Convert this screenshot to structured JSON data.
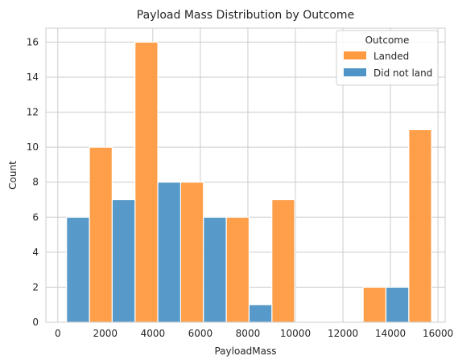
{
  "chart_data": {
    "type": "bar",
    "title": "Payload Mass Distribution by Outcome",
    "xlabel": "PayloadMass",
    "ylabel": "Count",
    "xlim": [
      -500,
      16300
    ],
    "ylim": [
      0,
      16.8
    ],
    "xticks": [
      0,
      2000,
      4000,
      6000,
      8000,
      10000,
      12000,
      14000,
      16000
    ],
    "yticks": [
      0,
      2,
      4,
      6,
      8,
      10,
      12,
      14,
      16
    ],
    "grid": true,
    "legend": {
      "title": "Outcome",
      "position": "top-right"
    },
    "colors": {
      "Landed": "#ff9a40",
      "Did not land": "#4e94c6"
    },
    "series": [
      {
        "name": "Landed",
        "bins": [
          {
            "x0": 1330,
            "x1": 2290,
            "value": 10
          },
          {
            "x0": 3250,
            "x1": 4210,
            "value": 16
          },
          {
            "x0": 5170,
            "x1": 6130,
            "value": 8
          },
          {
            "x0": 7090,
            "x1": 8050,
            "value": 6
          },
          {
            "x0": 9010,
            "x1": 9970,
            "value": 7
          },
          {
            "x0": 12850,
            "x1": 13810,
            "value": 2
          },
          {
            "x0": 14770,
            "x1": 15730,
            "value": 11
          }
        ]
      },
      {
        "name": "Did not land",
        "bins": [
          {
            "x0": 370,
            "x1": 1330,
            "value": 6
          },
          {
            "x0": 2290,
            "x1": 3250,
            "value": 7
          },
          {
            "x0": 4210,
            "x1": 5170,
            "value": 8
          },
          {
            "x0": 6130,
            "x1": 7090,
            "value": 6
          },
          {
            "x0": 8050,
            "x1": 9010,
            "value": 1
          },
          {
            "x0": 13810,
            "x1": 14770,
            "value": 2
          }
        ]
      }
    ]
  }
}
